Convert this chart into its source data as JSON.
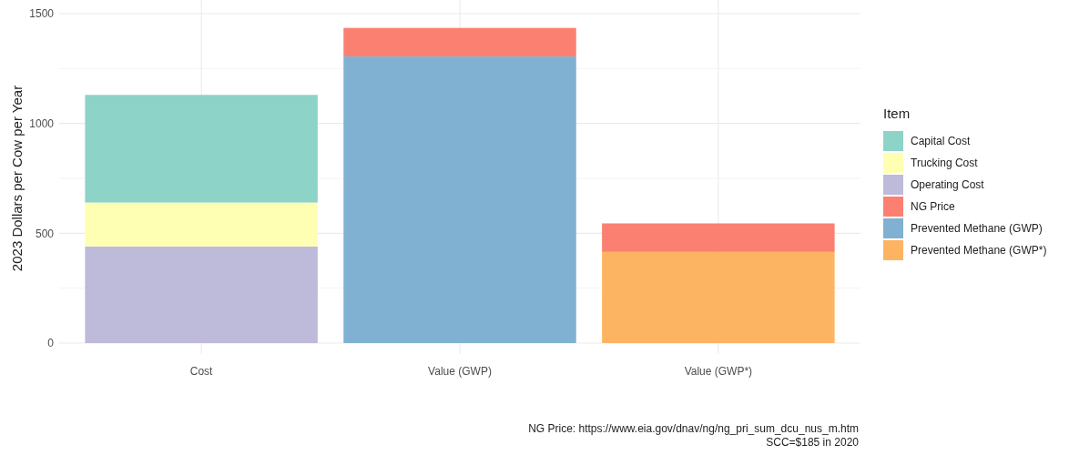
{
  "chart_data": {
    "type": "bar",
    "stacked": true,
    "ylabel": "2023 Dollars per Cow per Year",
    "legend_title": "Item",
    "legend": "right",
    "grid": true,
    "categories": [
      "Cost",
      "Value (GWP)",
      "Value (GWP*)"
    ],
    "ylim": [
      0,
      1500
    ],
    "yticks": [
      0,
      {
        "value": 250,
        "label": null
      },
      500,
      {
        "value": 750,
        "label": null
      },
      1000,
      {
        "value": 1250,
        "label": null
      },
      1500
    ],
    "series": [
      {
        "name": "Prevented Methane (GWP*)",
        "color": "#fdb462",
        "values": [
          null,
          null,
          415
        ]
      },
      {
        "name": "Prevented Methane (GWP)",
        "color": "#80b1d3",
        "values": [
          null,
          1305,
          null
        ]
      },
      {
        "name": "NG Price",
        "color": "#fb8072",
        "values": [
          null,
          130,
          130
        ]
      },
      {
        "name": "Operating Cost",
        "color": "#bebada",
        "values": [
          440,
          null,
          null
        ]
      },
      {
        "name": "Trucking Cost",
        "color": "#ffffb3",
        "values": [
          200,
          null,
          null
        ]
      },
      {
        "name": "Capital Cost",
        "color": "#8dd3c7",
        "values": [
          490,
          null,
          null
        ]
      }
    ],
    "annotations": [
      "NG Price: https://www.eia.gov/dnav/ng/ng_pri_sum_dcu_nus_m.htm",
      "SCC=$185 in 2020"
    ]
  }
}
